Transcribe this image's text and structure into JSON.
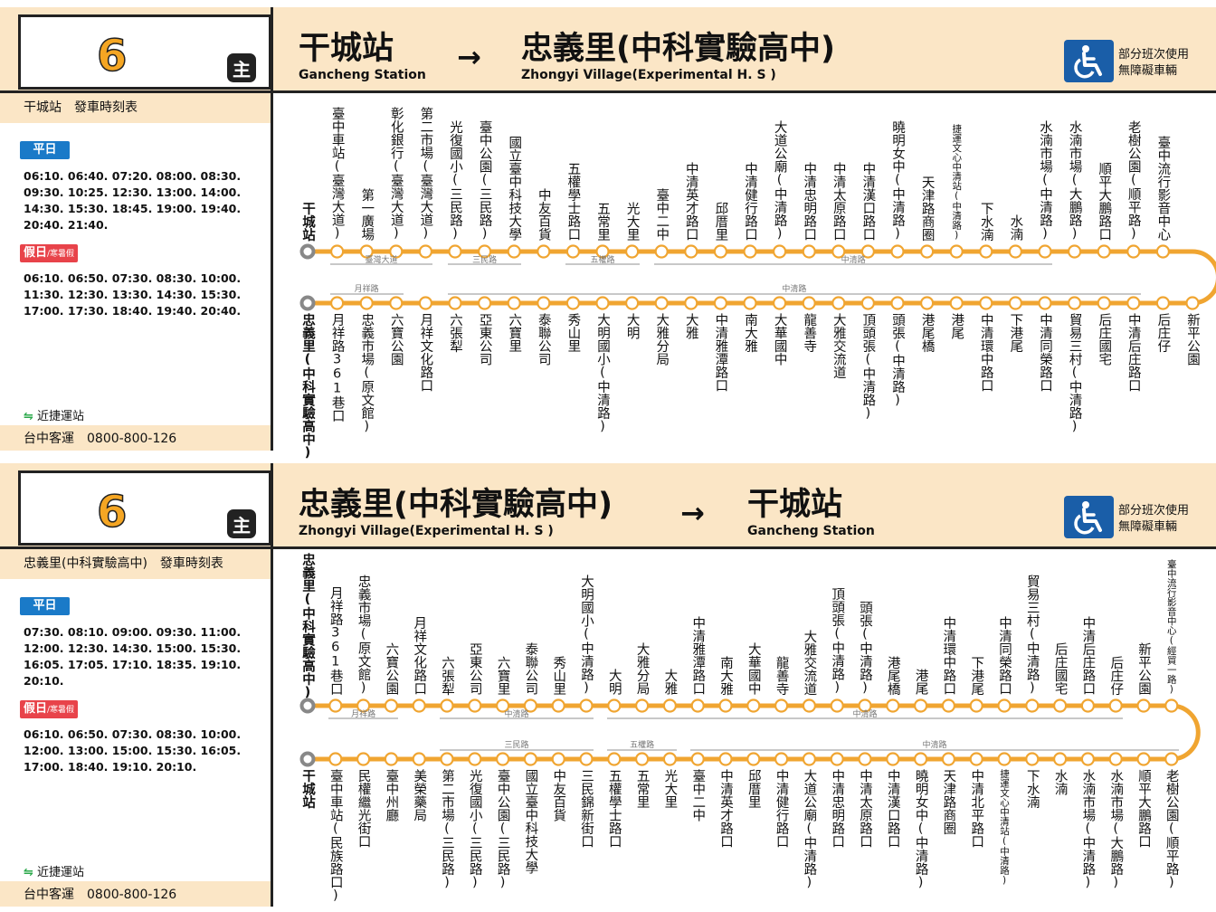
{
  "colors": {
    "line": "#f0a531",
    "header_bg": "#fbe6c6",
    "weekday_badge": "#1a7ac8",
    "holiday_badge": "#e8434a",
    "accessibility_icon_bg": "#1a5ea8"
  },
  "accessibility": {
    "icon": "wheelchair-icon",
    "line1": "部分班次使用",
    "line2": "無障礙車輛"
  },
  "panels": [
    {
      "route_number": "6",
      "route_badge": "主",
      "from_zh": "干城站",
      "from_en": "Gancheng Station",
      "arrow": "→",
      "to_zh": "忠義里(中科實驗高中)",
      "to_en": "Zhongyi Village(Experimental H. S )",
      "timetable_title": "干城站　發車時刻表",
      "weekday_label": "平日",
      "weekday_times": [
        "06:10. 06:40. 07:20. 08:00. 08:30.",
        "09:30. 10:25. 12:30. 13:00. 14:00.",
        "14:30. 15:30. 18:45. 19:00. 19:40.",
        "20:40. 21:40."
      ],
      "holiday_label": "假日",
      "holiday_sub": "/寒暑假",
      "holiday_times": [
        "06:10. 06:50. 07:30. 08:30. 10:00.",
        "11:30. 12:30. 13:30. 14:30. 15:30.",
        "17:00. 17:30. 18:40. 19:40. 20:40."
      ],
      "mrt_note": "近捷運站",
      "company": "台中客運　0800-800-126",
      "top_stops": [
        "干城站",
        "臺中車站(臺灣大道)",
        "第一廣場",
        "彰化銀行(臺灣大道)",
        "第二市場(臺灣大道)",
        "光復國小(三民路)",
        "臺中公園(三民路)",
        "國立臺中科技大學",
        "中友百貨",
        "五權學士路口",
        "五常里",
        "光大里",
        "臺中二中",
        "中清英才路口",
        "邱厝里",
        "中清健行路口",
        "大道公廟(中清路)",
        "中清忠明路口",
        "中清太原路口",
        "中清漢口路口",
        "曉明女中(中清路)",
        "天津路商圈",
        "捷運文心中清站(中清路)",
        "下水湳",
        "水湳",
        "水湳市場(中清路)",
        "水湳市場(大鵬路)",
        "順平大鵬路口",
        "老樹公園(順平路)",
        "臺中流行影音中心"
      ],
      "bottom_stops": [
        "忠義里(中科實驗高中)",
        "月祥路361巷口",
        "忠義市場(原文館)",
        "六寶公園",
        "月祥文化路口",
        "六張犁",
        "亞東公司",
        "六寶里",
        "泰聯公司",
        "秀山里",
        "大明國小(中清路)",
        "大明",
        "大雅分局",
        "大雅",
        "中清雅潭路口",
        "南大雅",
        "大華國中",
        "龍善寺",
        "大雅交流道",
        "頂頭張(中清路)",
        "頭張(中清路)",
        "港尾橋",
        "港尾",
        "中清環中路口",
        "下港尾",
        "中清同榮路口",
        "貿易三村(中清路)",
        "后庄國宅",
        "中清后庄路口",
        "后庄仔",
        "新平公園"
      ],
      "top_streets": [
        {
          "label": "臺灣大道",
          "from": 1,
          "to": 4
        },
        {
          "label": "三民路",
          "from": 5,
          "to": 7
        },
        {
          "label": "五權路",
          "from": 9,
          "to": 11
        },
        {
          "label": "中清路",
          "from": 12,
          "to": 25
        }
      ],
      "bottom_streets": [
        {
          "label": "月祥路",
          "from": 1,
          "to": 3
        },
        {
          "label": "中清路",
          "from": 5,
          "to": 28
        }
      ]
    },
    {
      "route_number": "6",
      "route_badge": "主",
      "from_zh": "忠義里(中科實驗高中)",
      "from_en": "Zhongyi Village(Experimental H. S )",
      "arrow": "→",
      "to_zh": "干城站",
      "to_en": "Gancheng Station",
      "timetable_title": "忠義里(中科實驗高中)　發車時刻表",
      "weekday_label": "平日",
      "weekday_times": [
        "07:30. 08:10. 09:00. 09:30. 11:00.",
        "12:00. 12:30. 14:30. 15:00. 15:30.",
        "16:05. 17:05. 17:10. 18:35. 19:10.",
        "20:10."
      ],
      "holiday_label": "假日",
      "holiday_sub": "/寒暑假",
      "holiday_times": [
        "06:10. 06:50. 07:30. 08:30. 10:00.",
        "12:00. 13:00. 15:00. 15:30. 16:05.",
        "17:00. 18:40. 19:10. 20:10."
      ],
      "mrt_note": "近捷運站",
      "company": "台中客運　0800-800-126",
      "top_stops": [
        "忠義里(中科實驗高中)",
        "月祥路361巷口",
        "忠義市場(原文館)",
        "六寶公園",
        "月祥文化路口",
        "六張犁",
        "亞東公司",
        "六寶里",
        "泰聯公司",
        "秀山里",
        "大明國小(中清路)",
        "大明",
        "大雅分局",
        "大雅",
        "中清雅潭路口",
        "南大雅",
        "大華國中",
        "龍善寺",
        "大雅交流道",
        "頂頭張(中清路)",
        "頭張(中清路)",
        "港尾橋",
        "港尾",
        "中清環中路口",
        "下港尾",
        "中清同榮路口",
        "貿易三村(中清路)",
        "后庄國宅",
        "中清后庄路口",
        "后庄仔",
        "新平公園",
        "臺中流行影音中心(經貿一路)"
      ],
      "bottom_stops": [
        "干城站",
        "臺中車站(民族路口)",
        "民權繼光街口",
        "臺中州廳",
        "美榮藥局",
        "第二市場(三民路)",
        "光復國小(三民路)",
        "臺中公園(三民路)",
        "國立臺中科技大學",
        "中友百貨",
        "三民錦新街口",
        "五權學士路口",
        "五常里",
        "光大里",
        "臺中二中",
        "中清英才路口",
        "邱厝里",
        "中清健行路口",
        "大道公廟(中清路)",
        "中清忠明路口",
        "中清太原路口",
        "中清漢口路口",
        "曉明女中(中清路)",
        "天津路商圈",
        "中清北平路口",
        "捷運文心中清站(中清路)",
        "下水湳",
        "水湳",
        "水湳市場(中清路)",
        "水湳市場(大鵬路)",
        "順平大鵬路口",
        "老樹公園(順平路)"
      ],
      "top_streets": [
        {
          "label": "月祥路",
          "from": 1,
          "to": 3
        },
        {
          "label": "中清路",
          "from": 5,
          "to": 10
        },
        {
          "label": "中清路",
          "from": 11,
          "to": 29
        }
      ],
      "bottom_streets": [
        {
          "label": "三民路",
          "from": 5,
          "to": 10
        },
        {
          "label": "五權路",
          "from": 11,
          "to": 13
        },
        {
          "label": "中清路",
          "from": 14,
          "to": 31
        }
      ]
    }
  ]
}
